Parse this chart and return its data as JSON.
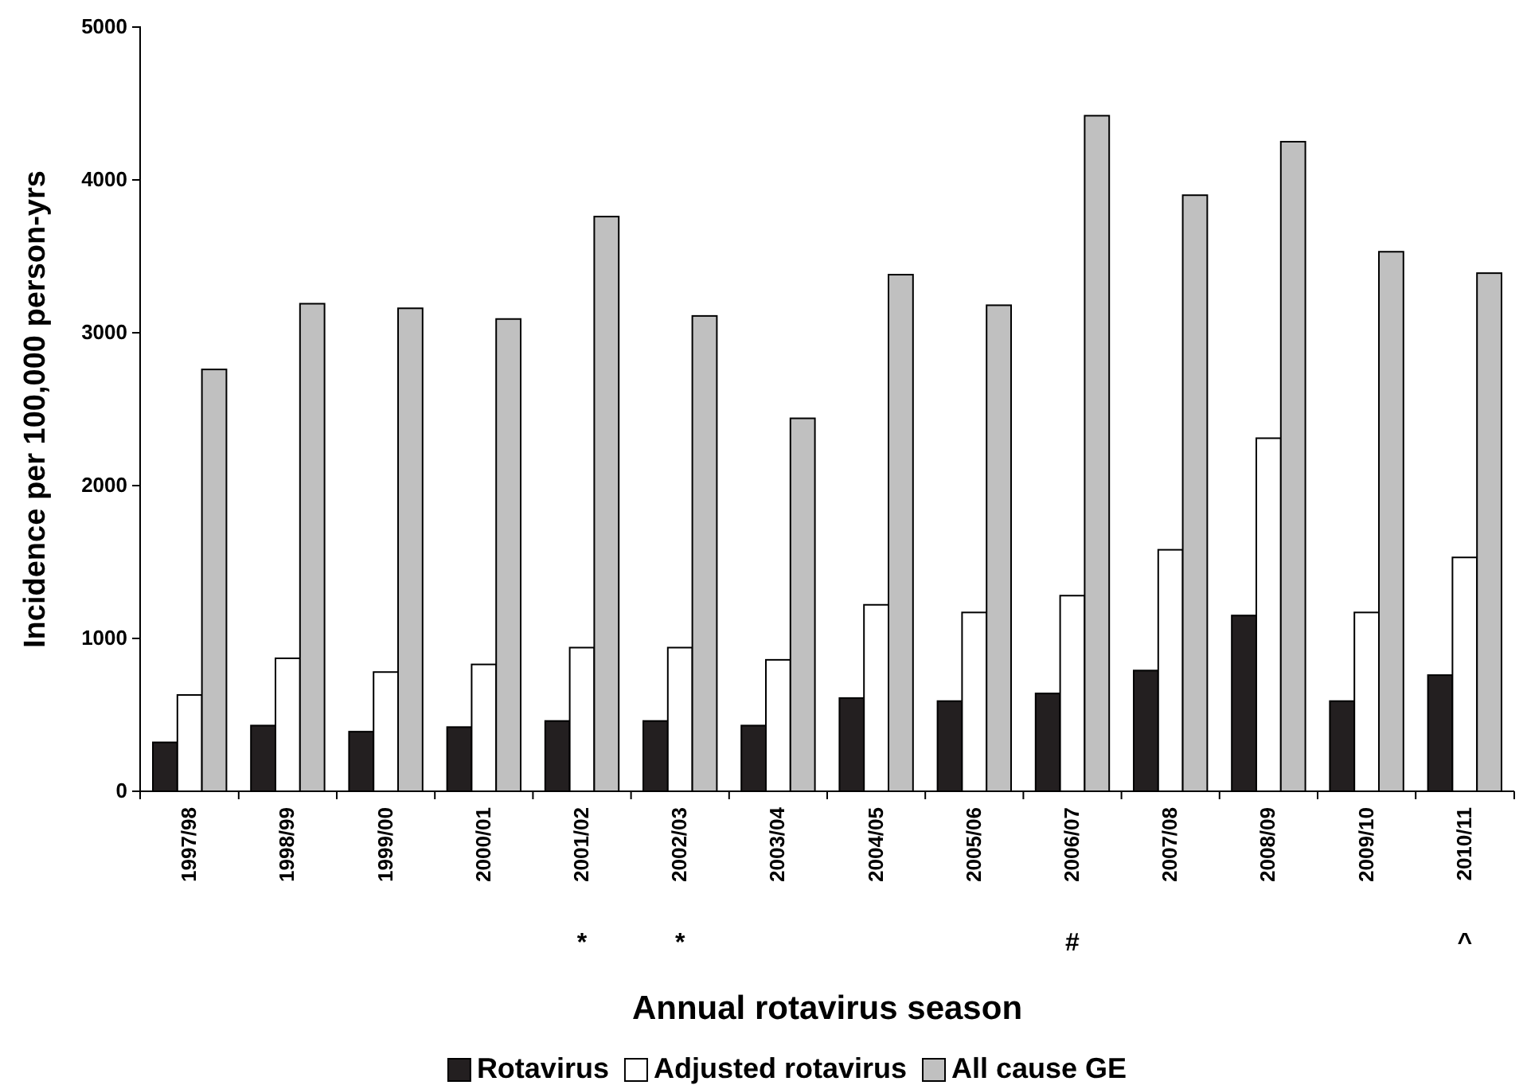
{
  "chart_data": {
    "type": "bar",
    "xlabel": "Annual rotavirus season",
    "ylabel": "Incidence per 100,000 person-yrs",
    "categories": [
      "1997/98",
      "1998/99",
      "1999/00",
      "2000/01",
      "2001/02",
      "2002/03",
      "2003/04",
      "2004/05",
      "2005/06",
      "2006/07",
      "2007/08",
      "2008/09",
      "2009/10",
      "2010/11"
    ],
    "series": [
      {
        "name": "Rotavirus",
        "color": "#231f20",
        "values": [
          320,
          430,
          390,
          420,
          460,
          460,
          430,
          610,
          590,
          640,
          790,
          1150,
          590,
          760
        ]
      },
      {
        "name": "Adjusted rotavirus",
        "color": "#ffffff",
        "values": [
          630,
          870,
          780,
          830,
          940,
          940,
          860,
          1220,
          1170,
          1280,
          1580,
          2310,
          1170,
          1530
        ]
      },
      {
        "name": "All cause GE",
        "color": "#c0c0c0",
        "values": [
          2760,
          3190,
          3160,
          3090,
          3760,
          3110,
          2440,
          3380,
          3180,
          4420,
          3900,
          4250,
          3530,
          3390
        ]
      }
    ],
    "ylim": [
      0,
      5000
    ],
    "yticks": [
      0,
      1000,
      2000,
      3000,
      4000,
      5000
    ],
    "grid": false,
    "legend": "bottom",
    "annotations": [
      "*",
      "*",
      "#",
      "^"
    ]
  }
}
